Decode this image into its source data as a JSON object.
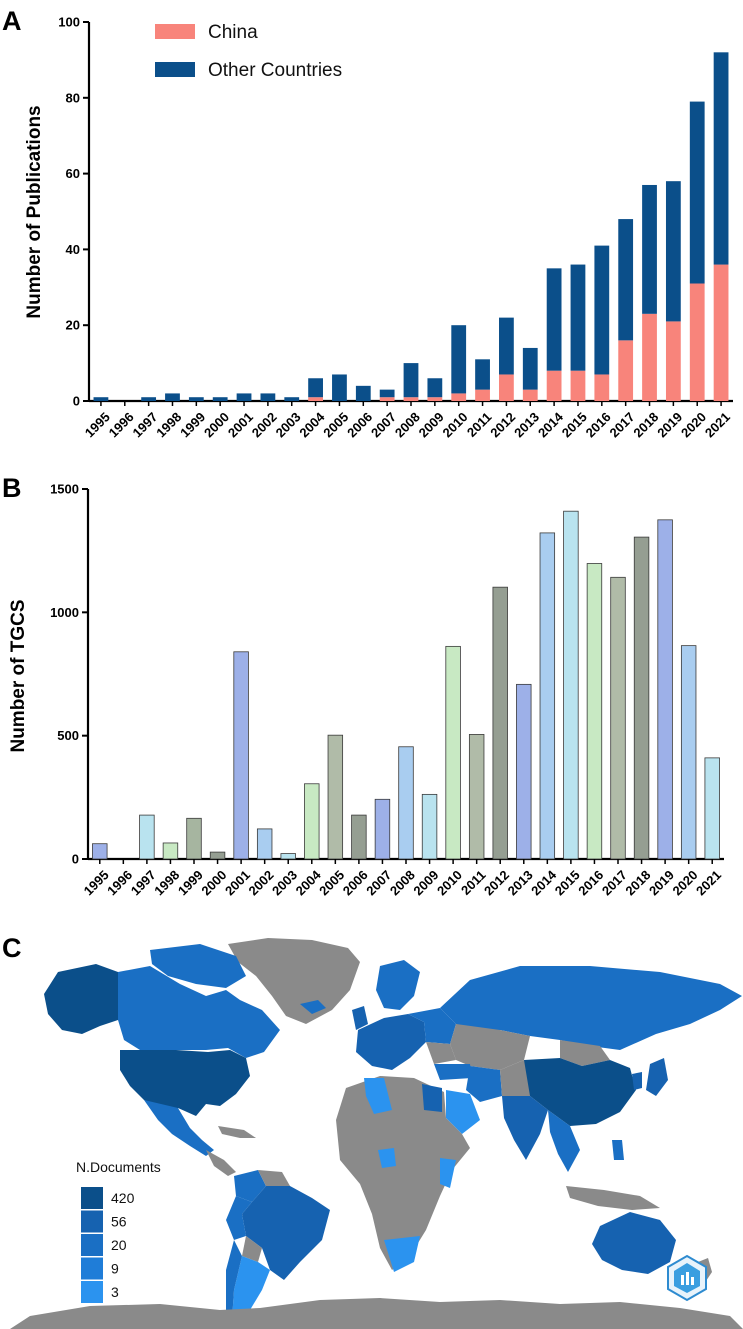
{
  "panels": {
    "a": "A",
    "b": "B",
    "c": "C"
  },
  "chart_data": [
    {
      "type": "bar",
      "stacked": true,
      "title": "",
      "xlabel": "",
      "ylabel": "Number of Publications",
      "ylim": [
        0,
        100
      ],
      "yticks": [
        0,
        20,
        40,
        60,
        80,
        100
      ],
      "categories": [
        "1995",
        "1996",
        "1997",
        "1998",
        "1999",
        "2000",
        "2001",
        "2002",
        "2003",
        "2004",
        "2005",
        "2006",
        "2007",
        "2008",
        "2009",
        "2010",
        "2011",
        "2012",
        "2013",
        "2014",
        "2015",
        "2016",
        "2017",
        "2018",
        "2019",
        "2020",
        "2021"
      ],
      "series": [
        {
          "name": "China",
          "color": "#f8847b",
          "values": [
            0,
            0,
            0,
            0,
            0,
            0,
            0,
            0,
            0,
            1,
            0,
            0,
            1,
            1,
            1,
            2,
            3,
            7,
            3,
            8,
            8,
            7,
            16,
            23,
            21,
            31,
            36
          ]
        },
        {
          "name": "Other Countries",
          "color": "#0b4f8a",
          "values": [
            1,
            0,
            1,
            2,
            1,
            1,
            2,
            2,
            1,
            5,
            7,
            4,
            2,
            9,
            5,
            18,
            8,
            15,
            11,
            27,
            28,
            34,
            32,
            34,
            37,
            48,
            56
          ]
        }
      ],
      "legend": "top-left"
    },
    {
      "type": "bar",
      "title": "",
      "xlabel": "",
      "ylabel": "Number of TGCS",
      "ylim": [
        0,
        1500
      ],
      "yticks": [
        0,
        500,
        1000,
        1500
      ],
      "categories": [
        "1995",
        "1996",
        "1997",
        "1998",
        "1999",
        "2000",
        "2001",
        "2002",
        "2003",
        "2004",
        "2005",
        "2006",
        "2007",
        "2008",
        "2009",
        "2010",
        "2011",
        "2012",
        "2013",
        "2014",
        "2015",
        "2016",
        "2017",
        "2018",
        "2019",
        "2020",
        "2021"
      ],
      "values": [
        62,
        0,
        178,
        65,
        165,
        28,
        840,
        122,
        22,
        305,
        502,
        178,
        242,
        455,
        262,
        862,
        505,
        1102,
        708,
        1322,
        1410,
        1198,
        1142,
        1305,
        1375,
        865,
        410
      ],
      "colors": [
        "#9db0e8",
        "#9db0e8",
        "#b9e3ef",
        "#c8e9c3",
        "#a6b5a0",
        "#959e92",
        "#9db0e8",
        "#a9cdf0",
        "#b9e3ef",
        "#c8e9c3",
        "#b0bba8",
        "#959e92",
        "#9db0e8",
        "#a9cdf0",
        "#b9e3ef",
        "#c8e9c3",
        "#b0bba8",
        "#959e92",
        "#9db0e8",
        "#a9cdf0",
        "#b9e3ef",
        "#c8e9c3",
        "#b0bba8",
        "#959e92",
        "#9db0e8",
        "#a9cdf0",
        "#b9e3ef"
      ]
    }
  ],
  "map": {
    "legend_title": "N.Documents",
    "legend": [
      {
        "label": "420",
        "color": "#0b4f8a"
      },
      {
        "label": "56",
        "color": "#1662b0"
      },
      {
        "label": "20",
        "color": "#1a6fc4"
      },
      {
        "label": "9",
        "color": "#1f7dd8"
      },
      {
        "label": "3",
        "color": "#2b93ef"
      }
    ],
    "no_data_color": "#8a8a8a"
  }
}
